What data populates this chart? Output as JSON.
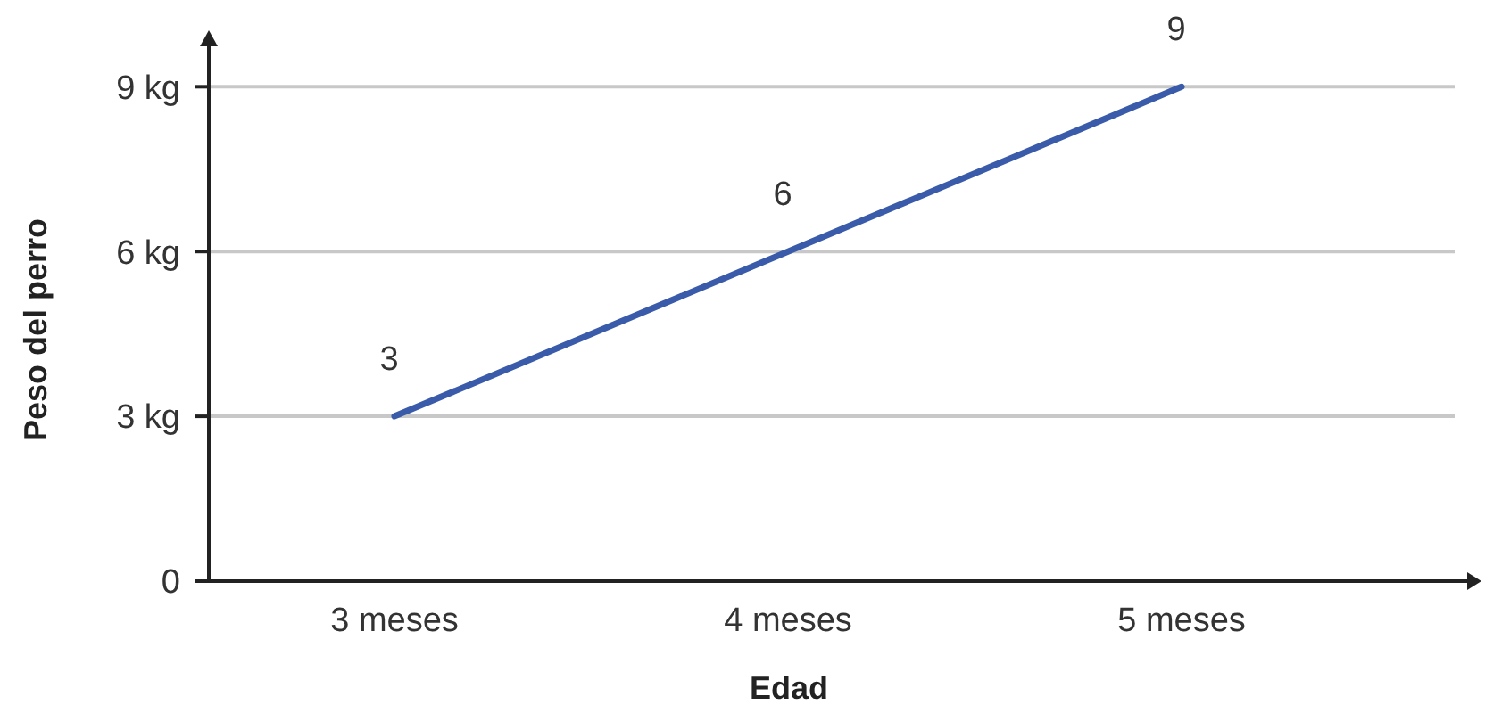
{
  "chart_data": {
    "type": "line",
    "xlabel": "Edad",
    "ylabel": "Peso del perro",
    "categories": [
      "3 meses",
      "4 meses",
      "5 meses"
    ],
    "series": [
      {
        "color": "#3a5ba9",
        "values": [
          3,
          6,
          9
        ]
      }
    ],
    "ylim": [
      0,
      9.8
    ],
    "yticks": [
      {
        "value": 0,
        "label": "0"
      },
      {
        "value": 3,
        "label": "3 kg"
      },
      {
        "value": 6,
        "label": "6 kg"
      },
      {
        "value": 9,
        "label": "9 kg"
      }
    ],
    "grid": "y",
    "data_labels": true
  }
}
